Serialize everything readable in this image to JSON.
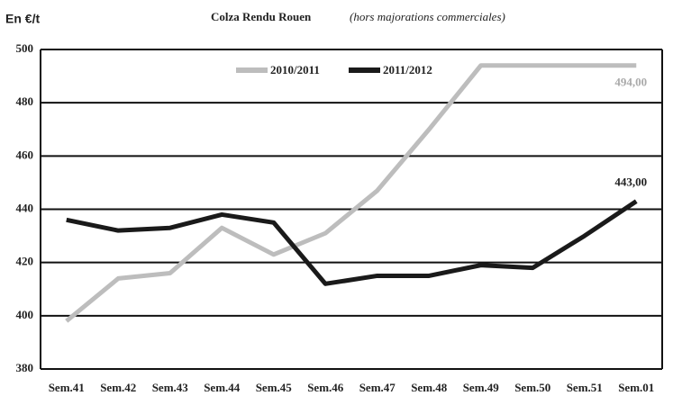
{
  "chart_data": {
    "type": "line",
    "title": "Colza Rendu Rouen",
    "subtitle": "(hors majorations commerciales)",
    "y_label": "En €/t",
    "categories": [
      "Sem.41",
      "Sem.42",
      "Sem.43",
      "Sem.44",
      "Sem.45",
      "Sem.46",
      "Sem.47",
      "Sem.48",
      "Sem.49",
      "Sem.50",
      "Sem.51",
      "Sem.01"
    ],
    "series": [
      {
        "name": "2010/2011",
        "color": "#bdbdbd",
        "values": [
          398,
          414,
          416,
          433,
          423,
          431,
          447,
          470,
          494,
          494,
          494,
          494
        ],
        "value_labels": [
          null,
          null,
          null,
          null,
          null,
          null,
          null,
          null,
          null,
          null,
          null,
          "494,00"
        ]
      },
      {
        "name": "2011/2012",
        "color": "#1a1a1a",
        "values": [
          436,
          432,
          433,
          438,
          435,
          412,
          415,
          415,
          419,
          418,
          430,
          443
        ],
        "value_labels": [
          null,
          null,
          null,
          null,
          null,
          null,
          null,
          null,
          null,
          null,
          null,
          "443,00"
        ]
      }
    ],
    "ylim": [
      380,
      500
    ],
    "yticks": [
      380,
      400,
      420,
      440,
      460,
      480,
      500
    ],
    "grid": true,
    "legend": "top"
  }
}
